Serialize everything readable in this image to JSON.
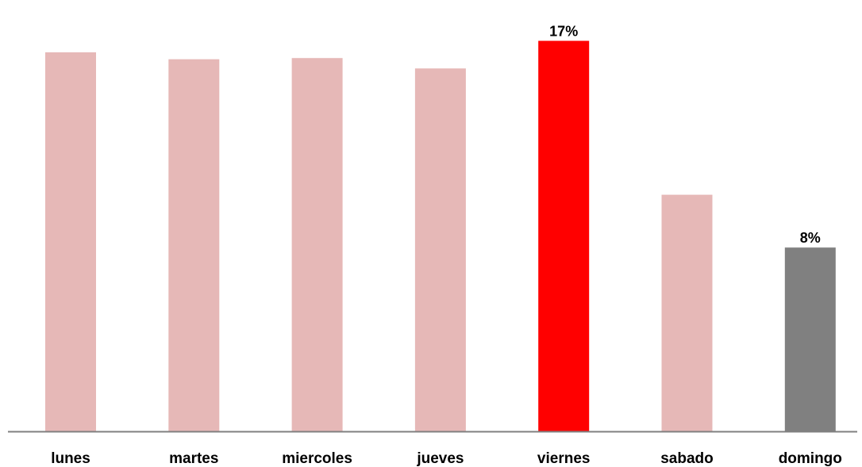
{
  "chart_data": {
    "type": "bar",
    "categories": [
      "lunes",
      "martes",
      "miercoles",
      "jueves",
      "viernes",
      "sabado",
      "domingo"
    ],
    "values": [
      16.5,
      16.2,
      16.25,
      15.8,
      17,
      10.3,
      8
    ],
    "ylim": [
      0,
      17.5
    ],
    "grid": false,
    "legend": "none",
    "data_labels": [
      {
        "category": "viernes",
        "text": "17%"
      },
      {
        "category": "domingo",
        "text": "8%"
      }
    ],
    "colors": {
      "default": "#e6b8b7",
      "viernes": "#ff0000",
      "domingo": "#808080",
      "axis": "#808080"
    }
  }
}
